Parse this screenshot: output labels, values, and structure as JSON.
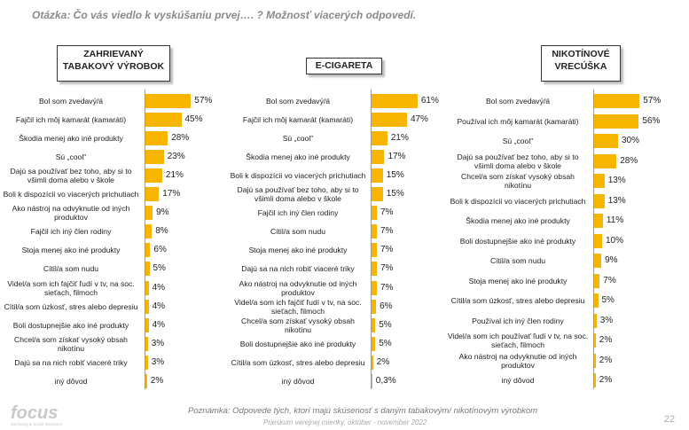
{
  "title": "Otázka: Čo vás viedlo k vyskúšaniu prvej…. ? Možnosť viacerých odpovedí.",
  "headers": {
    "p1_line1": "ZAHRIEVANÝ",
    "p1_line2": "TABAKOVÝ VÝROBOK",
    "p2_line1": "E-CIGARETA",
    "p3_line1": "NIKOTÍNOVÉ",
    "p3_line2": "VRECÚŠKA"
  },
  "footer": {
    "note": "Poznámka: Odpovede tých, ktorí majú skúsenosť s daným tabakovým/ nikotínovým výrobkom",
    "source": "Prieskum verejnej mienky, október - november 2022",
    "page": "22"
  },
  "logo": {
    "text": "focus",
    "tagline": "Marketing & Social Research"
  },
  "colors": {
    "bar": "#f7b500",
    "title": "#8a8a8a"
  },
  "chart_data": [
    {
      "type": "bar",
      "orientation": "horizontal",
      "title": "ZAHRIEVANÝ TABAKOVÝ VÝROBOK",
      "categories": [
        "Bol som zvedavý/á",
        "Fajčil ich môj kamarát (kamaráti)",
        "Škodia menej ako iné produkty",
        "Sú „cool\"",
        "Dajú sa používať bez toho, aby si to všimli doma alebo v škole",
        "Boli k dispozícii vo viacerých prichutiach",
        "Ako nástroj na odvyknutie od iných produktov",
        "Fajčil ich iný člen rodiny",
        "Stoja menej ako iné produkty",
        "Cítil/a som nudu",
        "Videl/a som ich fajčiť ľudí v tv, na soc. sieťach, filmoch",
        "Cítil/a som úzkosť, stres alebo depresiu",
        "Boli dostupnejšie ako iné produkty",
        "Chcel/a som získať vysoký obsah nikotínu",
        "Dajú sa na nich robiť viaceré triky",
        "iný dôvod"
      ],
      "values": [
        57,
        45,
        28,
        23,
        21,
        17,
        9,
        8,
        6,
        5,
        4,
        4,
        4,
        3,
        3,
        2
      ],
      "labels": [
        "57%",
        "45%",
        "28%",
        "23%",
        "21%",
        "17%",
        "9%",
        "8%",
        "6%",
        "5%",
        "4%",
        "4%",
        "4%",
        "3%",
        "3%",
        "2%"
      ]
    },
    {
      "type": "bar",
      "orientation": "horizontal",
      "title": "E-CIGARETA",
      "categories": [
        "Bol som zvedavý/á",
        "Fajčil ich môj kamarát (kamaráti)",
        "Sú „cool\"",
        "Škodia menej ako iné produkty",
        "Boli k dispozícii vo viacerých prichutiach",
        "Dajú sa používať bez toho, aby si to všimli doma alebo v škole",
        "Fajčil ich iný člen rodiny",
        "Cítil/a som nudu",
        "Stoja menej ako iné produkty",
        "Dajú sa na nich robiť viaceré triky",
        "Ako nástroj na odvyknutie od iných produktov",
        "Videl/a som ich fajčiť ľudí v tv, na soc. sieťach, filmoch",
        "Chcel/a som získať vysoký obsah nikotínu",
        "Boli dostupnejšie ako iné produkty",
        "Cítil/a som úzkosť, stres alebo depresiu",
        "iný dôvod"
      ],
      "values": [
        61,
        47,
        21,
        17,
        15,
        15,
        7,
        7,
        7,
        7,
        7,
        6,
        5,
        5,
        2,
        0.3
      ],
      "labels": [
        "61%",
        "47%",
        "21%",
        "17%",
        "15%",
        "15%",
        "7%",
        "7%",
        "7%",
        "7%",
        "7%",
        "6%",
        "5%",
        "5%",
        "2%",
        "0,3%"
      ]
    },
    {
      "type": "bar",
      "orientation": "horizontal",
      "title": "NIKOTÍNOVÉ VRECÚŠKA",
      "categories": [
        "Bol som zvedavý/á",
        "Používal ich môj kamarát (kamaráti)",
        "Sú „cool\"",
        "Dajú sa používať bez toho, aby si to všimli doma alebo v škole",
        "Chcel/a som získať vysoký obsah nikotínu",
        "Boli k dispozícii vo viacerých prichutiach",
        "Škodia menej ako iné produkty",
        "Boli dostupnejšie ako iné produkty",
        "Cítil/a som nudu",
        "Stoja menej ako iné produkty",
        "Cítil/a som úzkosť, stres alebo depresiu",
        "Používal ich iný člen rodiny",
        "Videl/a som ich používať ľudí v tv, na soc. sieťach, filmoch",
        "Ako nástroj na odvyknutie od iných produktov",
        "iný dôvod"
      ],
      "values": [
        57,
        56,
        30,
        28,
        13,
        13,
        11,
        10,
        9,
        7,
        5,
        3,
        2,
        2,
        2
      ],
      "labels": [
        "57%",
        "56%",
        "30%",
        "28%",
        "13%",
        "13%",
        "11%",
        "10%",
        "9%",
        "7%",
        "5%",
        "3%",
        "2%",
        "2%",
        "2%"
      ]
    }
  ]
}
